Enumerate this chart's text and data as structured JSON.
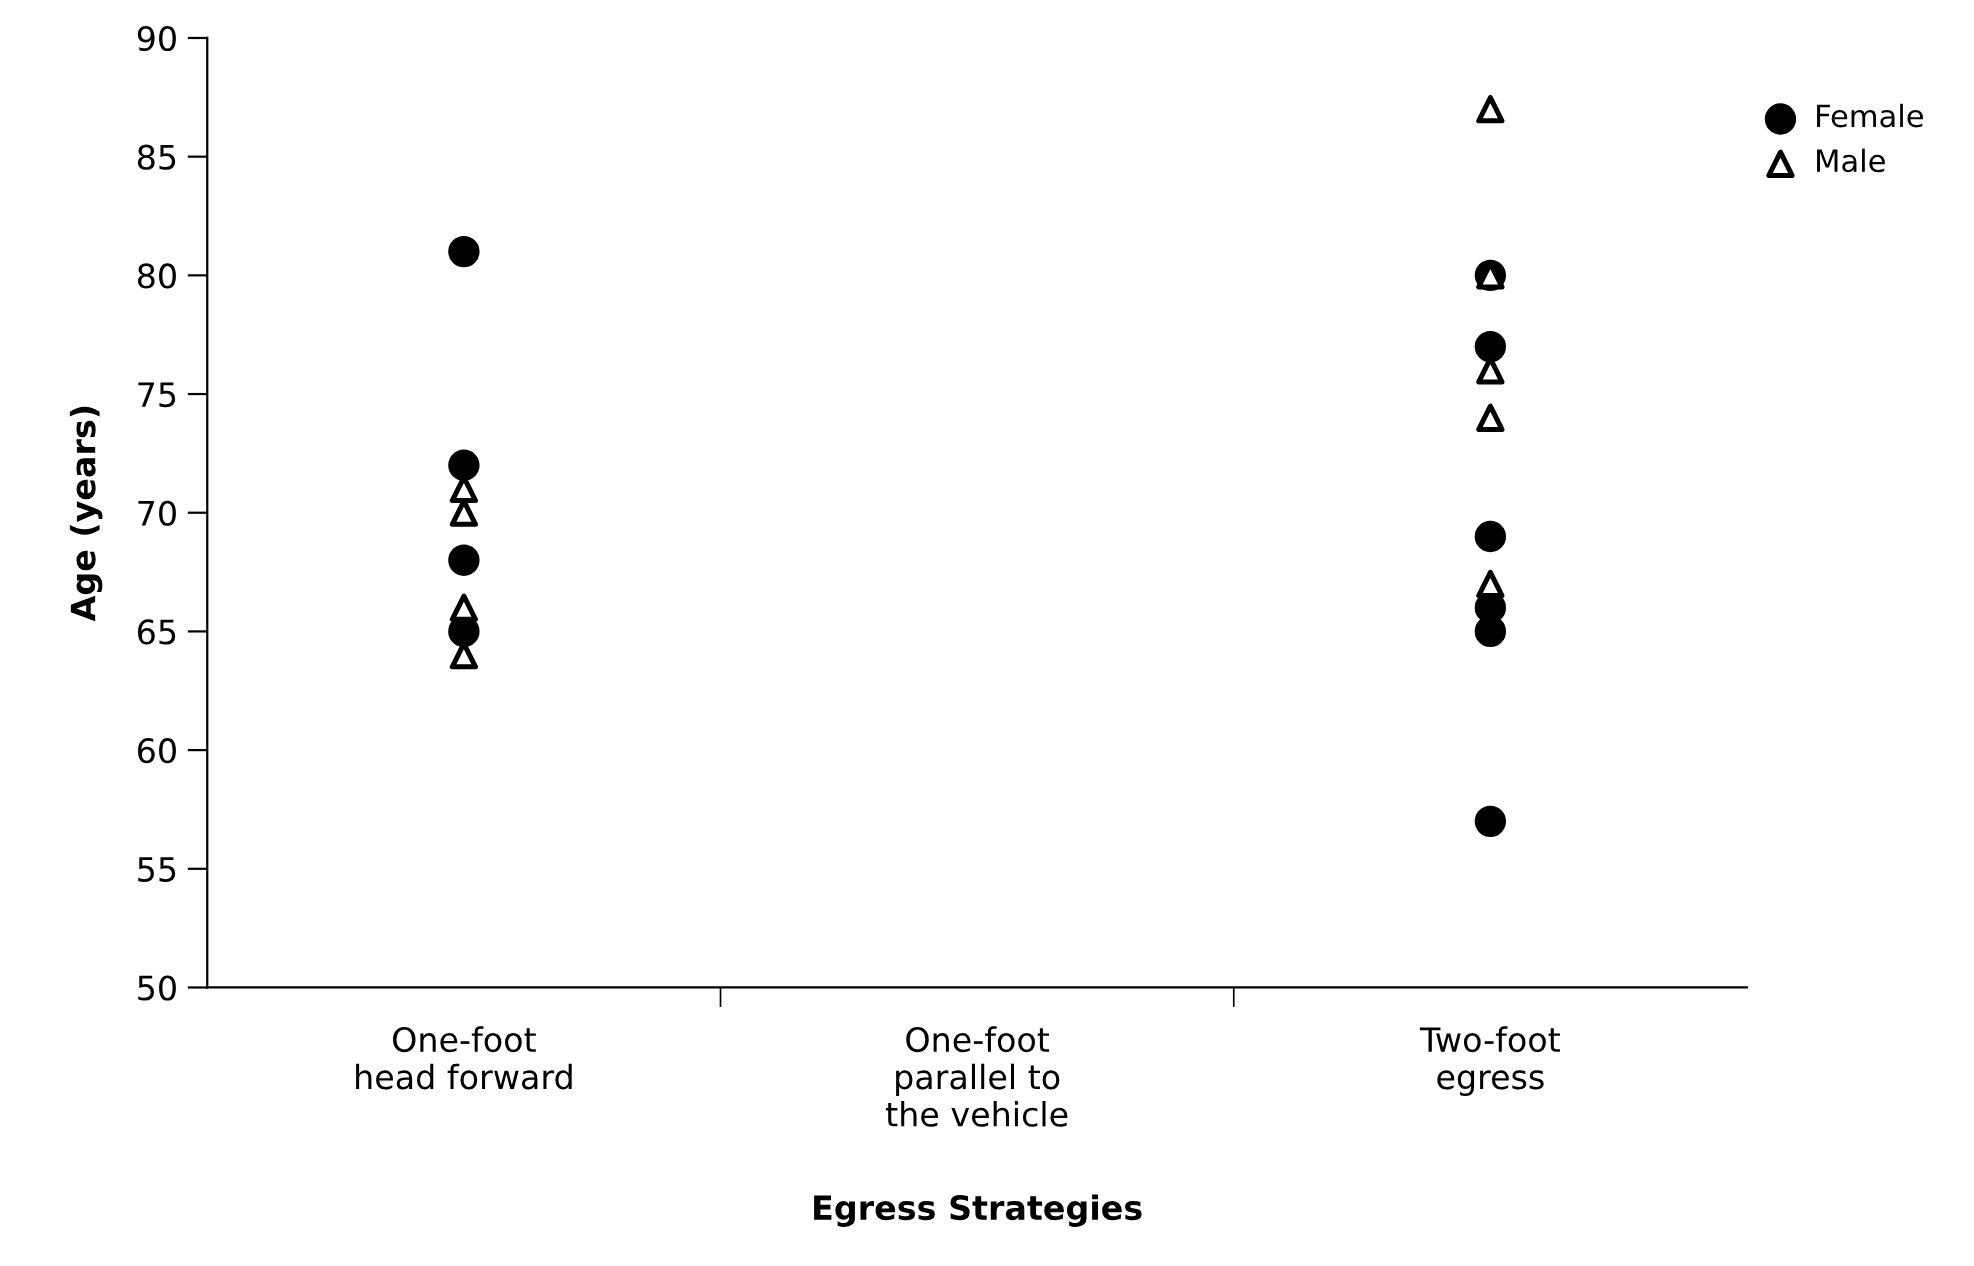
{
  "chart_data": {
    "type": "scatter",
    "xlabel": "Egress Strategies",
    "ylabel": "Age (years)",
    "categories": [
      "One-foot\nhead forward",
      "One-foot\nparallel to\nthe vehicle",
      "Two-foot\negress"
    ],
    "ylim": [
      50,
      90
    ],
    "yticks": [
      50,
      55,
      60,
      65,
      70,
      75,
      80,
      85,
      90
    ],
    "grid": false,
    "legend": "top right",
    "series": [
      {
        "name": "Female",
        "color": "#000000",
        "marker": "circle",
        "x": [
          "One-foot\nhead forward",
          "One-foot\nhead forward",
          "One-foot\nhead forward",
          "One-foot\nhead forward",
          "Two-foot\negress",
          "Two-foot\negress",
          "Two-foot\negress",
          "Two-foot\negress",
          "Two-foot\negress",
          "Two-foot\negress"
        ],
        "values": [
          81,
          72,
          68,
          65,
          80,
          77,
          69,
          66,
          65,
          57
        ]
      },
      {
        "name": "Male",
        "color": "#000000",
        "marker": "triangle",
        "x": [
          "One-foot\nhead forward",
          "One-foot\nhead forward",
          "One-foot\nhead forward",
          "One-foot\nhead forward",
          "Two-foot\negress",
          "Two-foot\negress",
          "Two-foot\negress",
          "Two-foot\negress",
          "Two-foot\negress"
        ],
        "values": [
          71,
          70,
          66,
          64,
          87,
          80,
          76,
          74,
          67
        ]
      }
    ]
  }
}
